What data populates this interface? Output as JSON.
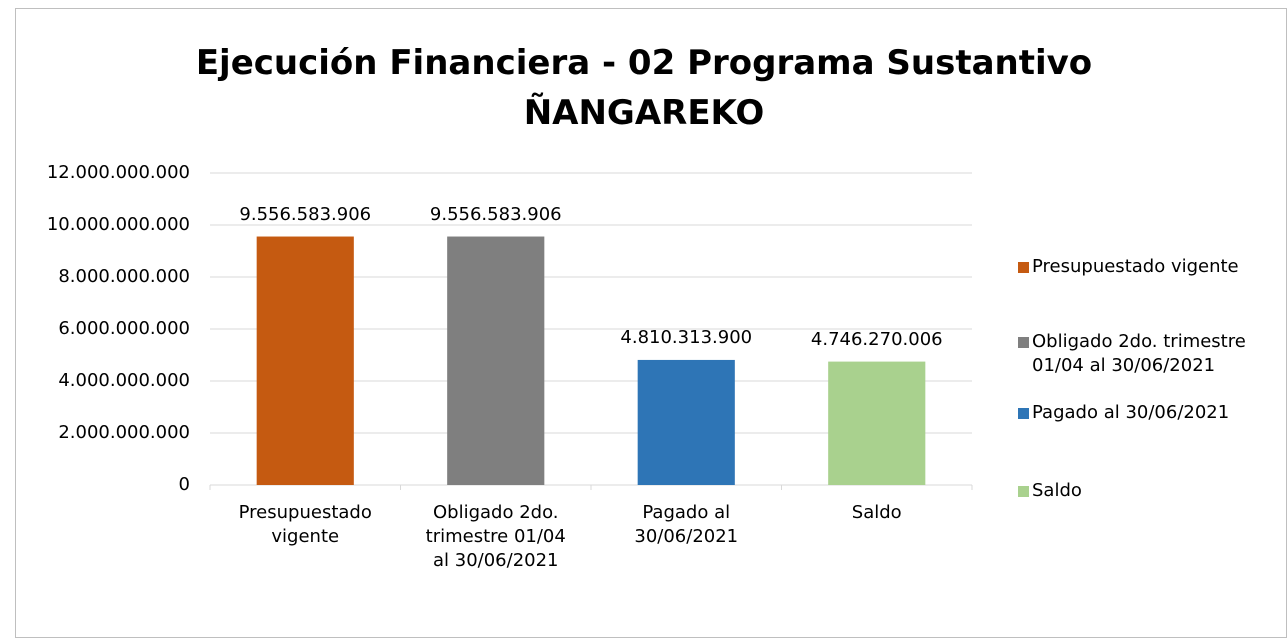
{
  "chart_data": {
    "type": "bar",
    "title": "Ejecución Financiera - 02 Programa Sustantivo\nÑANGAREKO",
    "categories": [
      "Presupuestado vigente",
      "Obligado 2do. trimestre 01/04 al 30/06/2021",
      "Pagado al 30/06/2021",
      "Saldo"
    ],
    "values": [
      9556583906,
      9556583906,
      4810313900,
      4746270006
    ],
    "value_labels": [
      "9.556.583.906",
      "9.556.583.906",
      "4.810.313.900",
      "4.746.270.006"
    ],
    "colors": [
      "#c55a11",
      "#7f7f7f",
      "#2e75b6",
      "#a9d18e"
    ],
    "ylim": [
      0,
      12000000000
    ],
    "yticks": [
      0,
      {
        "value": 2000000000,
        "label": "2.000.000.000"
      },
      {
        "value": 4000000000,
        "label": "4.000.000.000"
      },
      {
        "value": 6000000000,
        "label": "6.000.000.000"
      },
      {
        "value": 8000000000,
        "label": "8.000.000.000"
      },
      {
        "value": 10000000000,
        "label": "10.000.000.000"
      },
      {
        "value": 12000000000,
        "label": "12.000.000.000"
      }
    ],
    "grid": true,
    "legend": "right"
  }
}
